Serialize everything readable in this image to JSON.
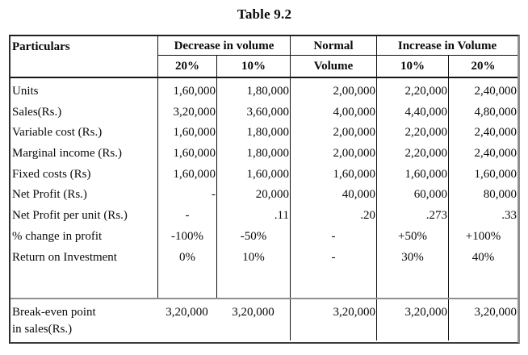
{
  "title": "Table 9.2",
  "table": {
    "header": {
      "particulars": "Particulars",
      "decrease_group": "Decrease in volume",
      "normal": "Normal",
      "increase_group": "Increase in Volume",
      "sub_headers": [
        "20%",
        "10%",
        "Volume",
        "10%",
        "20%"
      ]
    },
    "rows": [
      {
        "label": "Units",
        "values": [
          "1,60,000",
          "1,80,000",
          "2,00,000",
          "2,20,000",
          "2,40,000"
        ]
      },
      {
        "label": "Sales(Rs.)",
        "values": [
          "3,20,000",
          "3,60,000",
          "4,00,000",
          "4,40,000",
          "4,80,000"
        ]
      },
      {
        "label": "Variable cost (Rs.)",
        "values": [
          "1,60,000",
          "1,80,000",
          "2,00,000",
          "2,20,000",
          "2,40,000"
        ]
      },
      {
        "label": "Marginal income (Rs.)",
        "values": [
          "1,60,000",
          "1,80,000",
          "2,00,000",
          "2,20,000",
          "2,40,000"
        ]
      },
      {
        "label": "Fixed costs (Rs)",
        "values": [
          "1,60,000",
          "1,60,000",
          "1,60,000",
          "1,60,000",
          "1,60,000"
        ]
      },
      {
        "label": "Net Profit (Rs.)",
        "values": [
          "-",
          "20,000",
          "40,000",
          "60,000",
          "80,000"
        ]
      },
      {
        "label": "Net Profit per unit (Rs.)",
        "values": [
          "-",
          ".11",
          ".20",
          ".273",
          ".33"
        ]
      },
      {
        "label": "% change in profit",
        "values": [
          "-100%",
          "-50%",
          "-",
          "+50%",
          "+100%"
        ]
      },
      {
        "label": "Return on Investment",
        "values": [
          "0%",
          "10%",
          "-",
          "30%",
          "40%"
        ]
      }
    ],
    "footer": {
      "label_line1": "Break-even point",
      "label_line2": "in sales(Rs.)",
      "values": [
        "3,20,000",
        "3,20,000",
        "3,20,000",
        "3,20,000",
        "3,20,000"
      ]
    }
  }
}
